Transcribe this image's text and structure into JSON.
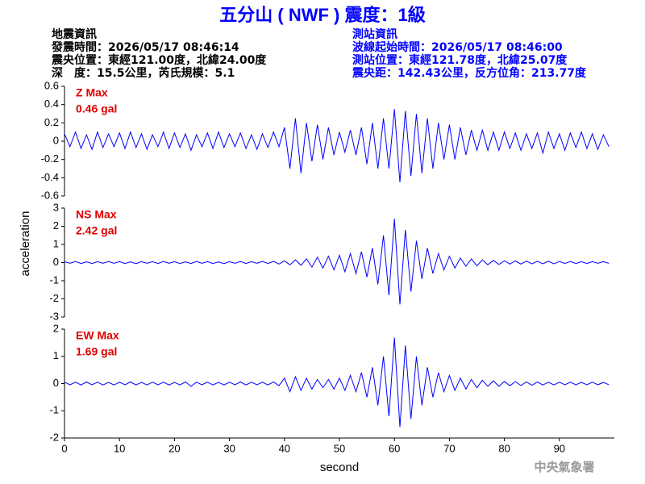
{
  "header": {
    "title": "五分山 ( NWF ) 震度：1級",
    "event": [
      "地震資訊",
      "發震時間：2026/05/17 08:46:14",
      "震央位置：東經121.00度，北緯24.00度",
      "深　度：15.5公里，芮氏規模：5.1"
    ],
    "station": [
      "測站資訊",
      "波線起始時間：2026/05/17 08:46:00",
      "測站位置：東經121.78度，北緯25.07度",
      "震央距：142.43公里，反方位角：213.77度"
    ]
  },
  "ylabel": "acceleration",
  "watermark": "中央氣象署",
  "chart_data": [
    {
      "type": "line",
      "annotation": [
        "Z Max",
        "0.46 gal"
      ],
      "color": "#0000ff",
      "xlim": [
        0,
        100
      ],
      "ylim": [
        -0.6,
        0.6
      ],
      "yticks": [
        -0.6,
        -0.4,
        -0.2,
        0,
        0.2,
        0.4,
        0.6
      ],
      "x": [
        0,
        1,
        2,
        3,
        4,
        5,
        6,
        7,
        8,
        9,
        10,
        11,
        12,
        13,
        14,
        15,
        16,
        17,
        18,
        19,
        20,
        21,
        22,
        23,
        24,
        25,
        26,
        27,
        28,
        29,
        30,
        31,
        32,
        33,
        34,
        35,
        36,
        37,
        38,
        39,
        40,
        41,
        42,
        43,
        44,
        45,
        46,
        47,
        48,
        49,
        50,
        51,
        52,
        53,
        54,
        55,
        56,
        57,
        58,
        59,
        60,
        61,
        62,
        63,
        64,
        65,
        66,
        67,
        68,
        69,
        70,
        71,
        72,
        73,
        74,
        75,
        76,
        77,
        78,
        79,
        80,
        81,
        82,
        83,
        84,
        85,
        86,
        87,
        88,
        89,
        90,
        91,
        92,
        93,
        94,
        95,
        96,
        97,
        98,
        99
      ],
      "values": [
        0.08,
        -0.06,
        0.1,
        -0.08,
        0.07,
        -0.09,
        0.1,
        -0.07,
        0.08,
        -0.06,
        0.09,
        -0.08,
        0.1,
        -0.07,
        0.08,
        -0.09,
        0.07,
        -0.06,
        0.1,
        -0.08,
        0.09,
        -0.07,
        0.08,
        -0.1,
        0.07,
        -0.06,
        0.09,
        -0.08,
        0.1,
        -0.07,
        0.08,
        -0.06,
        0.09,
        -0.08,
        0.07,
        -0.09,
        0.08,
        -0.07,
        0.1,
        -0.06,
        0.15,
        -0.3,
        0.25,
        -0.35,
        0.2,
        -0.22,
        0.18,
        -0.2,
        0.15,
        -0.15,
        0.1,
        -0.12,
        0.12,
        -0.15,
        0.15,
        -0.25,
        0.2,
        -0.3,
        0.25,
        -0.3,
        0.35,
        -0.45,
        0.33,
        -0.38,
        0.3,
        -0.35,
        0.25,
        -0.3,
        0.2,
        -0.2,
        0.18,
        -0.2,
        0.15,
        -0.15,
        0.12,
        -0.1,
        0.12,
        -0.1,
        0.1,
        -0.1,
        0.1,
        -0.08,
        0.09,
        -0.1,
        0.08,
        -0.08,
        0.09,
        -0.13,
        0.1,
        -0.08,
        0.08,
        -0.1,
        0.09,
        -0.07,
        0.1,
        -0.08,
        0.08,
        -0.09,
        0.07,
        -0.06
      ]
    },
    {
      "type": "line",
      "annotation": [
        "NS Max",
        "2.42 gal"
      ],
      "color": "#0000ff",
      "xlim": [
        0,
        100
      ],
      "ylim": [
        -3,
        3
      ],
      "yticks": [
        -3,
        -2,
        -1,
        0,
        1,
        2,
        3
      ],
      "x": [
        0,
        1,
        2,
        3,
        4,
        5,
        6,
        7,
        8,
        9,
        10,
        11,
        12,
        13,
        14,
        15,
        16,
        17,
        18,
        19,
        20,
        21,
        22,
        23,
        24,
        25,
        26,
        27,
        28,
        29,
        30,
        31,
        32,
        33,
        34,
        35,
        36,
        37,
        38,
        39,
        40,
        41,
        42,
        43,
        44,
        45,
        46,
        47,
        48,
        49,
        50,
        51,
        52,
        53,
        54,
        55,
        56,
        57,
        58,
        59,
        60,
        61,
        62,
        63,
        64,
        65,
        66,
        67,
        68,
        69,
        70,
        71,
        72,
        73,
        74,
        75,
        76,
        77,
        78,
        79,
        80,
        81,
        82,
        83,
        84,
        85,
        86,
        87,
        88,
        89,
        90,
        91,
        92,
        93,
        94,
        95,
        96,
        97,
        98,
        99
      ],
      "values": [
        0.05,
        -0.04,
        0.06,
        -0.05,
        0.04,
        -0.05,
        0.05,
        -0.04,
        0.06,
        -0.04,
        0.05,
        -0.05,
        0.04,
        -0.06,
        0.05,
        -0.04,
        0.05,
        -0.05,
        0.06,
        -0.04,
        0.05,
        -0.05,
        0.04,
        -0.05,
        0.06,
        -0.04,
        0.05,
        -0.05,
        0.04,
        -0.06,
        0.05,
        -0.04,
        0.06,
        -0.05,
        0.05,
        -0.04,
        0.06,
        -0.05,
        0.07,
        -0.08,
        0.1,
        -0.12,
        0.15,
        -0.15,
        0.2,
        -0.25,
        0.3,
        -0.3,
        0.35,
        -0.4,
        0.4,
        -0.5,
        0.5,
        -0.6,
        0.6,
        -0.8,
        0.8,
        -1.2,
        1.5,
        -1.8,
        2.42,
        -2.3,
        1.8,
        -1.6,
        1.2,
        -0.9,
        0.8,
        -0.6,
        0.5,
        -0.4,
        0.35,
        -0.3,
        0.25,
        -0.2,
        0.2,
        -0.18,
        0.15,
        -0.12,
        0.12,
        -0.1,
        0.1,
        -0.08,
        0.09,
        -0.08,
        0.08,
        -0.07,
        0.07,
        -0.06,
        0.07,
        -0.06,
        0.06,
        -0.05,
        0.06,
        -0.05,
        0.05,
        -0.05,
        0.05,
        -0.04,
        0.05,
        -0.04
      ]
    },
    {
      "type": "line",
      "annotation": [
        "EW Max",
        "1.69 gal"
      ],
      "color": "#0000ff",
      "xlim": [
        0,
        100
      ],
      "ylim": [
        -2,
        2
      ],
      "yticks": [
        -2,
        -1,
        0,
        1,
        2
      ],
      "xticks": [
        0,
        10,
        20,
        30,
        40,
        50,
        60,
        70,
        80,
        90
      ],
      "xlabel": "second",
      "x": [
        0,
        1,
        2,
        3,
        4,
        5,
        6,
        7,
        8,
        9,
        10,
        11,
        12,
        13,
        14,
        15,
        16,
        17,
        18,
        19,
        20,
        21,
        22,
        23,
        24,
        25,
        26,
        27,
        28,
        29,
        30,
        31,
        32,
        33,
        34,
        35,
        36,
        37,
        38,
        39,
        40,
        41,
        42,
        43,
        44,
        45,
        46,
        47,
        48,
        49,
        50,
        51,
        52,
        53,
        54,
        55,
        56,
        57,
        58,
        59,
        60,
        61,
        62,
        63,
        64,
        65,
        66,
        67,
        68,
        69,
        70,
        71,
        72,
        73,
        74,
        75,
        76,
        77,
        78,
        79,
        80,
        81,
        82,
        83,
        84,
        85,
        86,
        87,
        88,
        89,
        90,
        91,
        92,
        93,
        94,
        95,
        96,
        97,
        98,
        99
      ],
      "values": [
        0.05,
        -0.04,
        0.05,
        -0.05,
        0.06,
        -0.04,
        0.05,
        -0.05,
        0.04,
        -0.05,
        0.05,
        -0.04,
        0.06,
        -0.05,
        0.04,
        -0.05,
        0.05,
        -0.04,
        0.05,
        -0.05,
        0.04,
        -0.05,
        0.06,
        -0.1,
        0.05,
        -0.04,
        0.05,
        -0.05,
        0.04,
        -0.05,
        0.05,
        -0.04,
        0.06,
        -0.05,
        0.05,
        -0.04,
        0.05,
        -0.05,
        0.06,
        -0.08,
        0.2,
        -0.3,
        0.25,
        -0.25,
        0.2,
        -0.2,
        0.15,
        -0.15,
        0.15,
        -0.2,
        0.2,
        -0.25,
        0.3,
        -0.3,
        0.4,
        -0.5,
        0.6,
        -0.8,
        1.0,
        -1.2,
        1.69,
        -1.6,
        1.4,
        -1.3,
        1.0,
        -0.8,
        0.6,
        -0.5,
        0.4,
        -0.3,
        0.3,
        -0.25,
        0.2,
        -0.2,
        0.15,
        -0.15,
        0.12,
        -0.1,
        0.1,
        -0.1,
        0.08,
        -0.08,
        0.07,
        -0.07,
        0.06,
        -0.06,
        0.06,
        -0.05,
        0.05,
        -0.05,
        0.05,
        -0.04,
        0.05,
        -0.04,
        0.04,
        -0.04,
        0.05,
        -0.04,
        0.04,
        -0.04
      ]
    }
  ]
}
